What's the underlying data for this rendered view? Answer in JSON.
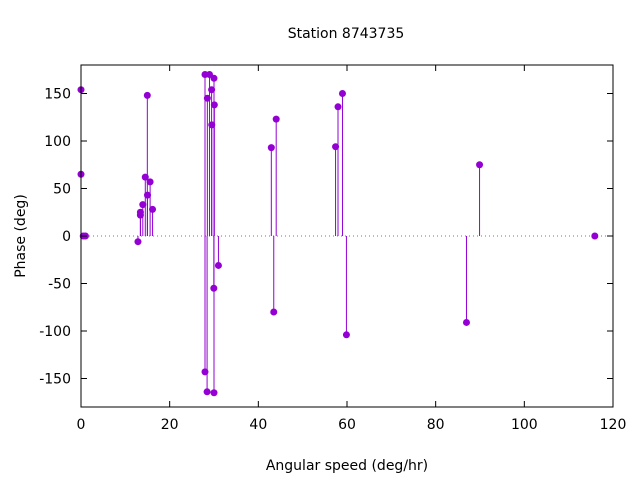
{
  "chart_data": {
    "type": "scatter",
    "style": "impulses with point markers",
    "title": "Station 8743735",
    "xlabel": "Angular speed (deg/hr)",
    "ylabel": "Phase (deg)",
    "xlim": [
      0,
      120
    ],
    "ylim": [
      -180,
      180
    ],
    "xticks": [
      0,
      20,
      40,
      60,
      80,
      100,
      120
    ],
    "yticks": [
      -150,
      -100,
      -50,
      0,
      50,
      100,
      150
    ],
    "xtick_labels": [
      "0",
      "20",
      "40",
      "60",
      "80",
      "100",
      "120"
    ],
    "ytick_labels": [
      "-150",
      "-100",
      "-50",
      "0",
      "50",
      "100",
      "150"
    ],
    "zero_line": "dotted",
    "grid": false,
    "legend": "none",
    "color": "#9400d3",
    "points": [
      {
        "x": 0.0,
        "y": 154
      },
      {
        "x": 0.0,
        "y": 65
      },
      {
        "x": 0.5,
        "y": 0
      },
      {
        "x": 1.0,
        "y": 0
      },
      {
        "x": 12.85,
        "y": -6
      },
      {
        "x": 13.4,
        "y": 22
      },
      {
        "x": 13.4,
        "y": 25
      },
      {
        "x": 13.94,
        "y": 33
      },
      {
        "x": 14.5,
        "y": 62
      },
      {
        "x": 14.96,
        "y": 148
      },
      {
        "x": 15.0,
        "y": 43
      },
      {
        "x": 15.59,
        "y": 57
      },
      {
        "x": 16.14,
        "y": 28
      },
      {
        "x": 27.97,
        "y": 170
      },
      {
        "x": 27.97,
        "y": -143
      },
      {
        "x": 28.44,
        "y": -164
      },
      {
        "x": 28.5,
        "y": 145
      },
      {
        "x": 28.99,
        "y": 170
      },
      {
        "x": 29.46,
        "y": 154
      },
      {
        "x": 29.5,
        "y": 117
      },
      {
        "x": 29.96,
        "y": -55
      },
      {
        "x": 30.0,
        "y": -165
      },
      {
        "x": 30.0,
        "y": 166
      },
      {
        "x": 30.08,
        "y": 138
      },
      {
        "x": 31.0,
        "y": -31
      },
      {
        "x": 42.93,
        "y": 93
      },
      {
        "x": 43.48,
        "y": -80
      },
      {
        "x": 44.03,
        "y": 123
      },
      {
        "x": 57.42,
        "y": 94
      },
      {
        "x": 57.97,
        "y": 136
      },
      {
        "x": 58.98,
        "y": 150
      },
      {
        "x": 59.87,
        "y": -104
      },
      {
        "x": 86.95,
        "y": -91
      },
      {
        "x": 89.9,
        "y": 75
      },
      {
        "x": 115.9,
        "y": 0
      }
    ]
  }
}
